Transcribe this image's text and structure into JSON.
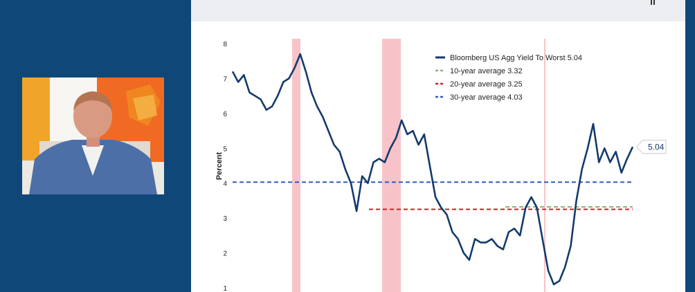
{
  "chart_data": {
    "type": "line",
    "title": "",
    "xlabel": "",
    "ylabel": "Percent",
    "ylim": [
      1,
      8
    ],
    "yticks": [
      1,
      2,
      3,
      4,
      5,
      6,
      7,
      8
    ],
    "grid": false,
    "legend_position": "top-right",
    "series": [
      {
        "name": "Bloomberg US Agg Yield To Worst 5.04",
        "color": "#123a6e",
        "values": [
          7.2,
          6.9,
          7.1,
          6.6,
          6.5,
          6.4,
          6.1,
          6.2,
          6.5,
          6.9,
          7.0,
          7.3,
          7.7,
          7.2,
          6.6,
          6.2,
          5.9,
          5.5,
          5.1,
          4.9,
          4.4,
          4.0,
          3.2,
          4.2,
          4.0,
          4.6,
          4.7,
          4.6,
          5.0,
          5.3,
          5.8,
          5.4,
          5.5,
          5.1,
          5.4,
          4.5,
          3.6,
          3.3,
          3.1,
          2.6,
          2.4,
          2.0,
          1.8,
          2.4,
          2.3,
          2.3,
          2.4,
          2.2,
          2.1,
          2.6,
          2.7,
          2.5,
          3.3,
          3.6,
          3.3,
          2.4,
          1.5,
          1.1,
          1.2,
          1.6,
          2.2,
          3.5,
          4.4,
          5.0,
          5.7,
          4.6,
          5.0,
          4.6,
          4.9,
          4.3,
          4.7,
          5.04
        ]
      },
      {
        "name": "10-year average 3.32",
        "color": "#8fae7e",
        "value": 3.32
      },
      {
        "name": "20-year average 3.25",
        "color": "#d11f26",
        "value": 3.25
      },
      {
        "name": "30-year average 4.03",
        "color": "#2a5bbf",
        "value": 4.03
      }
    ],
    "end_label": "5.04",
    "recession_shading_color": "#f5a9b0"
  }
}
